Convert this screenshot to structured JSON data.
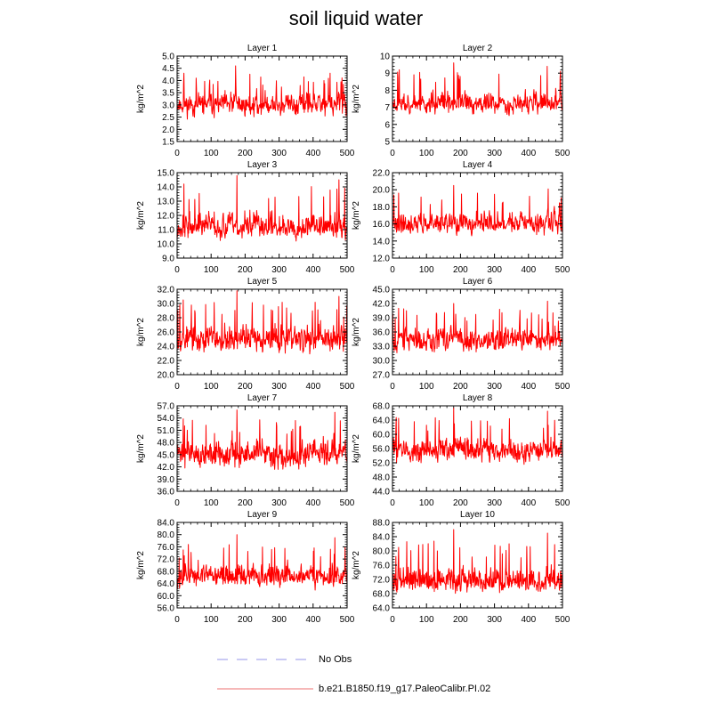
{
  "title": "soil liquid water",
  "legend": {
    "no_obs": {
      "label": "No Obs",
      "color": "#b8b8f0",
      "style": "dashed"
    },
    "run": {
      "label": "b.e21.B1850.f19_g17.PaleoCalibr.PI.02",
      "color": "#f4a0a0",
      "style": "solid"
    }
  },
  "series_color": "#ff0000",
  "chart_data": [
    {
      "type": "line",
      "title": "Layer 1",
      "xlabel": "",
      "ylabel": "kg/m^2",
      "xlim": [
        0,
        500
      ],
      "x_ticks": [
        0,
        100,
        200,
        300,
        400,
        500
      ],
      "ylim": [
        1.5,
        5.0
      ],
      "y_ticks": [
        "1.5",
        "2.0",
        "2.5",
        "3.0",
        "3.5",
        "4.0",
        "4.5",
        "5.0"
      ],
      "y_mean": 3.0,
      "y_min": 2.0,
      "y_max": 4.6,
      "peaks": [
        [
          20,
          4.3
        ],
        [
          172,
          4.6
        ],
        [
          450,
          4.3
        ]
      ],
      "samples": 500,
      "seed": 11
    },
    {
      "type": "line",
      "title": "Layer 2",
      "xlabel": "",
      "ylabel": "kg/m^2",
      "xlim": [
        0,
        500
      ],
      "x_ticks": [
        0,
        100,
        200,
        300,
        400,
        500
      ],
      "ylim": [
        5,
        10
      ],
      "y_ticks": [
        "5",
        "6",
        "7",
        "8",
        "9",
        "10"
      ],
      "y_mean": 7.2,
      "y_min": 6.0,
      "y_max": 9.6,
      "peaks": [
        [
          20,
          9.2
        ],
        [
          180,
          9.6
        ],
        [
          455,
          9.4
        ]
      ],
      "samples": 500,
      "seed": 23
    },
    {
      "type": "line",
      "title": "Layer 3",
      "xlabel": "",
      "ylabel": "kg/m^2",
      "xlim": [
        0,
        500
      ],
      "x_ticks": [
        0,
        100,
        200,
        300,
        400,
        500
      ],
      "ylim": [
        9.0,
        15.0
      ],
      "y_ticks": [
        "9.0",
        "10.0",
        "11.0",
        "12.0",
        "13.0",
        "14.0",
        "15.0"
      ],
      "y_mean": 11.2,
      "y_min": 9.5,
      "y_max": 14.8,
      "peaks": [
        [
          20,
          14.2
        ],
        [
          176,
          14.8
        ],
        [
          476,
          14.5
        ]
      ],
      "samples": 500,
      "seed": 37
    },
    {
      "type": "line",
      "title": "Layer 4",
      "xlabel": "",
      "ylabel": "kg/m^2",
      "xlim": [
        0,
        500
      ],
      "x_ticks": [
        0,
        100,
        200,
        300,
        400,
        500
      ],
      "ylim": [
        12.0,
        22.0
      ],
      "y_ticks": [
        "12.0",
        "14.0",
        "16.0",
        "18.0",
        "20.0",
        "22.0"
      ],
      "y_mean": 16.0,
      "y_min": 13.6,
      "y_max": 20.5,
      "peaks": [
        [
          18,
          19.6
        ],
        [
          180,
          20.5
        ],
        [
          458,
          20.1
        ]
      ],
      "samples": 500,
      "seed": 41
    },
    {
      "type": "line",
      "title": "Layer 5",
      "xlabel": "",
      "ylabel": "kg/m^2",
      "xlim": [
        0,
        500
      ],
      "x_ticks": [
        0,
        100,
        200,
        300,
        400,
        500
      ],
      "ylim": [
        20.0,
        32.0
      ],
      "y_ticks": [
        "20.0",
        "22.0",
        "24.0",
        "26.0",
        "28.0",
        "30.0",
        "32.0"
      ],
      "y_mean": 25.0,
      "y_min": 21.0,
      "y_max": 31.8,
      "peaks": [
        [
          18,
          30.5
        ],
        [
          176,
          31.8
        ],
        [
          476,
          31.0
        ]
      ],
      "samples": 500,
      "seed": 53
    },
    {
      "type": "line",
      "title": "Layer 6",
      "xlabel": "",
      "ylabel": "kg/m^2",
      "xlim": [
        0,
        500
      ],
      "x_ticks": [
        0,
        100,
        200,
        300,
        400,
        500
      ],
      "ylim": [
        27.0,
        45.0
      ],
      "y_ticks": [
        "27.0",
        "30.0",
        "33.0",
        "36.0",
        "39.0",
        "42.0",
        "45.0"
      ],
      "y_mean": 34.5,
      "y_min": 29.0,
      "y_max": 42.5,
      "peaks": [
        [
          18,
          41.0
        ],
        [
          180,
          42.0
        ],
        [
          456,
          42.5
        ]
      ],
      "samples": 500,
      "seed": 67
    },
    {
      "type": "line",
      "title": "Layer 7",
      "xlabel": "",
      "ylabel": "kg/m^2",
      "xlim": [
        0,
        500
      ],
      "x_ticks": [
        0,
        100,
        200,
        300,
        400,
        500
      ],
      "ylim": [
        36.0,
        57.0
      ],
      "y_ticks": [
        "36.0",
        "39.0",
        "42.0",
        "45.0",
        "48.0",
        "51.0",
        "54.0",
        "57.0"
      ],
      "y_mean": 45.0,
      "y_min": 38.0,
      "y_max": 56.0,
      "peaks": [
        [
          18,
          53.8
        ],
        [
          176,
          56.0
        ],
        [
          464,
          55.4
        ]
      ],
      "samples": 500,
      "seed": 71
    },
    {
      "type": "line",
      "title": "Layer 8",
      "xlabel": "",
      "ylabel": "kg/m^2",
      "xlim": [
        0,
        500
      ],
      "x_ticks": [
        0,
        100,
        200,
        300,
        400,
        500
      ],
      "ylim": [
        44.0,
        68.0
      ],
      "y_ticks": [
        "44.0",
        "48.0",
        "52.0",
        "56.0",
        "60.0",
        "64.0",
        "68.0"
      ],
      "y_mean": 55.5,
      "y_min": 48.5,
      "y_max": 67.5,
      "peaks": [
        [
          18,
          64.5
        ],
        [
          180,
          67.5
        ],
        [
          456,
          66.5
        ]
      ],
      "samples": 500,
      "seed": 83
    },
    {
      "type": "line",
      "title": "Layer 9",
      "xlabel": "",
      "ylabel": "kg/m^2",
      "xlim": [
        0,
        500
      ],
      "x_ticks": [
        0,
        100,
        200,
        300,
        400,
        500
      ],
      "ylim": [
        56.0,
        84.0
      ],
      "y_ticks": [
        "56.0",
        "60.0",
        "64.0",
        "68.0",
        "72.0",
        "76.0",
        "80.0",
        "84.0"
      ],
      "y_mean": 66.0,
      "y_min": 59.5,
      "y_max": 80.0,
      "peaks": [
        [
          18,
          75.0
        ],
        [
          176,
          80.0
        ],
        [
          464,
          79.0
        ]
      ],
      "samples": 500,
      "seed": 97
    },
    {
      "type": "line",
      "title": "Layer 10",
      "xlabel": "",
      "ylabel": "kg/m^2",
      "xlim": [
        0,
        500
      ],
      "x_ticks": [
        0,
        100,
        200,
        300,
        400,
        500
      ],
      "ylim": [
        64.0,
        88.0
      ],
      "y_ticks": [
        "64.0",
        "68.0",
        "72.0",
        "76.0",
        "80.0",
        "84.0",
        "88.0"
      ],
      "y_mean": 71.5,
      "y_min": 65.0,
      "y_max": 86.0,
      "peaks": [
        [
          18,
          81.0
        ],
        [
          180,
          86.0
        ],
        [
          456,
          85.0
        ]
      ],
      "samples": 500,
      "seed": 101
    }
  ]
}
